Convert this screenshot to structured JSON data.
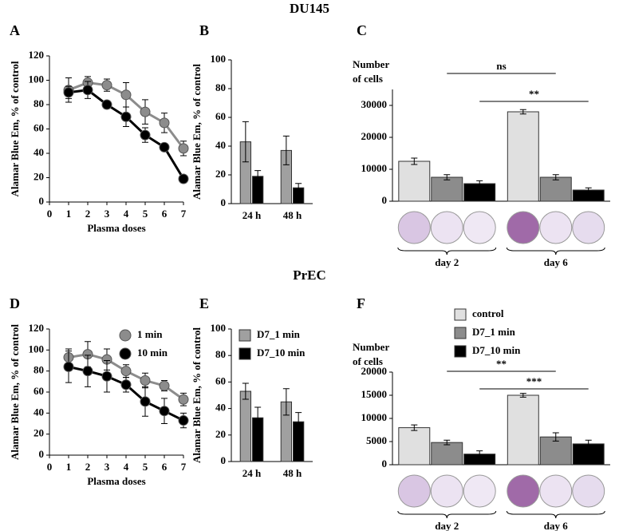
{
  "headings": [
    "DU145",
    "PrEC"
  ],
  "chart_data": [
    {
      "panel": "A",
      "type": "line",
      "ylabel": "Alamar Blue Em,  % of control",
      "xlabel": "Plasma doses",
      "x": [
        1,
        2,
        3,
        4,
        5,
        6,
        7
      ],
      "xlim": [
        0,
        7
      ],
      "xticks": [
        0,
        1,
        2,
        3,
        4,
        5,
        6,
        7
      ],
      "ylim": [
        0,
        120
      ],
      "yticks": [
        0,
        20,
        40,
        60,
        80,
        100,
        120
      ],
      "series": [
        {
          "color": "#8c8c8c",
          "values": [
            92,
            98,
            96,
            88,
            74,
            65,
            44
          ],
          "errors": [
            10,
            5,
            5,
            10,
            10,
            8,
            6
          ]
        },
        {
          "color": "#000000",
          "values": [
            90,
            92,
            80,
            70,
            55,
            45,
            19
          ],
          "errors": [
            5,
            7,
            3,
            8,
            6,
            3,
            3
          ]
        }
      ]
    },
    {
      "panel": "B",
      "type": "bar",
      "ylabel": "Alamar Blue Em,  % of control",
      "categories": [
        "24 h",
        "48 h"
      ],
      "ylim": [
        0,
        100
      ],
      "yticks": [
        0,
        20,
        40,
        60,
        80,
        100
      ],
      "series": [
        {
          "color": "#a0a0a0",
          "values": [
            43,
            37
          ],
          "errors": [
            14,
            10
          ]
        },
        {
          "color": "#000000",
          "values": [
            19,
            11
          ],
          "errors": [
            4,
            3
          ]
        }
      ]
    },
    {
      "panel": "C",
      "type": "bar",
      "ylabel": [
        "Number",
        "of cells"
      ],
      "categories": [
        "day 2",
        "day 6"
      ],
      "ylim": [
        0,
        35000
      ],
      "yticks": [
        0,
        10000,
        20000,
        30000
      ],
      "series": [
        {
          "color": "#e0e0e0",
          "values": [
            12500,
            28000
          ],
          "errors": [
            1000,
            700
          ]
        },
        {
          "color": "#8c8c8c",
          "values": [
            7500,
            7500
          ],
          "errors": [
            800,
            800
          ]
        },
        {
          "color": "#000000",
          "values": [
            5500,
            3500
          ],
          "errors": [
            900,
            700
          ]
        }
      ],
      "annotations": [
        "ns",
        "**"
      ]
    },
    {
      "panel": "D",
      "type": "line",
      "ylabel": "Alamar Blue Em,  % of control",
      "xlabel": "Plasma doses",
      "x": [
        1,
        2,
        3,
        4,
        5,
        6,
        7
      ],
      "xlim": [
        0,
        7
      ],
      "xticks": [
        0,
        1,
        2,
        3,
        4,
        5,
        6,
        7
      ],
      "ylim": [
        0,
        120
      ],
      "yticks": [
        0,
        20,
        40,
        60,
        80,
        100,
        120
      ],
      "legend": "upper right",
      "series": [
        {
          "name": "1 min",
          "color": "#8c8c8c",
          "values": [
            93,
            96,
            91,
            80,
            71,
            66,
            53
          ],
          "errors": [
            8,
            12,
            10,
            6,
            7,
            5,
            6
          ]
        },
        {
          "name": "10 min",
          "color": "#000000",
          "values": [
            84,
            80,
            75,
            67,
            51,
            42,
            33
          ],
          "errors": [
            15,
            15,
            15,
            7,
            14,
            12,
            7
          ]
        }
      ]
    },
    {
      "panel": "E",
      "type": "bar",
      "ylabel": "Alamar Blue Em,  % of control",
      "categories": [
        "24 h",
        "48 h"
      ],
      "ylim": [
        0,
        100
      ],
      "yticks": [
        0,
        20,
        40,
        60,
        80,
        100
      ],
      "legend": "upper left",
      "series": [
        {
          "name": "D7_1 min",
          "color": "#a0a0a0",
          "values": [
            53,
            45
          ],
          "errors": [
            6,
            10
          ]
        },
        {
          "name": "D7_10 min",
          "color": "#000000",
          "values": [
            33,
            30
          ],
          "errors": [
            8,
            7
          ]
        }
      ]
    },
    {
      "panel": "F",
      "type": "bar",
      "ylabel": [
        "Number",
        "of cells"
      ],
      "categories": [
        "day 2",
        "day 6"
      ],
      "ylim": [
        0,
        20000
      ],
      "yticks": [
        0,
        5000,
        10000,
        15000,
        20000
      ],
      "legend": "above right",
      "series": [
        {
          "name": "control",
          "color": "#e0e0e0",
          "values": [
            8000,
            15000
          ],
          "errors": [
            600,
            400
          ]
        },
        {
          "name": "D7_1 min",
          "color": "#8c8c8c",
          "values": [
            4800,
            6000
          ],
          "errors": [
            500,
            900
          ]
        },
        {
          "name": "D7_10 min",
          "color": "#000000",
          "values": [
            2300,
            4500
          ],
          "errors": [
            700,
            800
          ]
        }
      ],
      "annotations": [
        "**",
        "***"
      ]
    }
  ]
}
